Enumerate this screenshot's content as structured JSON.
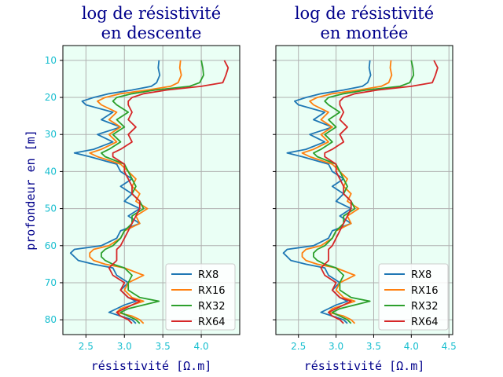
{
  "figure": {
    "ylabel": "profondeur en [m]",
    "bg_color": "#eafff5",
    "title_color": "#00008b",
    "tick_color": "#17becf"
  },
  "chart_data": [
    {
      "type": "line",
      "title": "log de résistivité\nen descente",
      "xlabel": "résistivité [Ω.m]",
      "ylabel": "profondeur en [m]",
      "xlim": [
        2.2,
        4.5
      ],
      "ylim": [
        84,
        6
      ],
      "xticks": [
        "2.5",
        "3.0",
        "3.5",
        "4.0"
      ],
      "yticks": [
        "10",
        "20",
        "30",
        "40",
        "50",
        "60",
        "70",
        "80"
      ],
      "grid": true,
      "legend_position": "lower right",
      "series": [
        {
          "name": "RX8",
          "color": "#1f77b4",
          "depth": [
            10,
            12,
            14,
            16,
            17,
            18,
            19,
            20,
            21,
            22,
            24,
            26,
            28,
            30,
            32,
            34,
            35,
            36,
            38,
            40,
            42,
            44,
            46,
            48,
            50,
            52,
            54,
            56,
            58,
            60,
            61,
            62,
            63,
            64,
            65,
            66,
            68,
            70,
            72,
            74,
            75,
            76,
            77,
            78,
            79,
            80,
            81
          ],
          "values": [
            3.45,
            3.44,
            3.46,
            3.42,
            3.35,
            3.1,
            2.8,
            2.6,
            2.45,
            2.5,
            2.85,
            2.7,
            2.95,
            2.65,
            2.85,
            2.6,
            2.35,
            2.55,
            2.9,
            2.95,
            3.1,
            2.95,
            3.1,
            3.0,
            3.2,
            3.05,
            3.2,
            2.95,
            2.9,
            2.7,
            2.35,
            2.3,
            2.35,
            2.4,
            2.6,
            2.85,
            2.9,
            3.05,
            2.95,
            3.05,
            3.15,
            3.0,
            2.9,
            2.8,
            2.95,
            3.1,
            3.15
          ]
        },
        {
          "name": "RX16",
          "color": "#ff7f0e",
          "depth": [
            10,
            12,
            14,
            16,
            17,
            18,
            19,
            20,
            21,
            22,
            24,
            26,
            28,
            30,
            32,
            34,
            35,
            36,
            38,
            40,
            42,
            44,
            46,
            48,
            50,
            52,
            54,
            56,
            58,
            60,
            61,
            62,
            63,
            64,
            65,
            66,
            68,
            70,
            72,
            74,
            75,
            76,
            77,
            78,
            79,
            80,
            81
          ],
          "values": [
            3.73,
            3.72,
            3.74,
            3.7,
            3.6,
            3.3,
            2.95,
            2.75,
            2.65,
            2.7,
            2.9,
            2.8,
            2.95,
            2.8,
            2.9,
            2.7,
            2.55,
            2.65,
            2.95,
            3.05,
            3.15,
            3.1,
            3.2,
            3.15,
            3.3,
            3.15,
            3.2,
            3.0,
            2.95,
            2.8,
            2.6,
            2.55,
            2.55,
            2.6,
            2.75,
            3.0,
            3.25,
            3.05,
            3.0,
            3.1,
            3.25,
            3.1,
            2.95,
            2.9,
            3.1,
            3.2,
            3.25
          ]
        },
        {
          "name": "RX32",
          "color": "#2ca02c",
          "depth": [
            10,
            12,
            14,
            16,
            17,
            18,
            19,
            20,
            21,
            22,
            24,
            26,
            28,
            30,
            32,
            34,
            35,
            36,
            38,
            40,
            42,
            44,
            46,
            48,
            50,
            52,
            54,
            56,
            58,
            60,
            61,
            62,
            63,
            64,
            65,
            66,
            68,
            70,
            72,
            74,
            75,
            76,
            77,
            78,
            79,
            80,
            81
          ],
          "values": [
            4.0,
            4.02,
            4.03,
            3.98,
            3.85,
            3.4,
            3.1,
            2.9,
            2.85,
            2.9,
            3.05,
            2.9,
            3.0,
            2.85,
            2.95,
            2.8,
            2.7,
            2.75,
            3.0,
            3.05,
            3.1,
            3.15,
            3.1,
            3.2,
            3.25,
            3.1,
            3.1,
            3.0,
            2.95,
            2.85,
            2.75,
            2.7,
            2.7,
            2.75,
            2.85,
            3.0,
            3.1,
            3.05,
            3.05,
            3.2,
            3.45,
            3.25,
            3.05,
            2.95,
            3.05,
            3.15,
            3.2
          ]
        },
        {
          "name": "RX64",
          "color": "#d62728",
          "depth": [
            10,
            12,
            14,
            16,
            17,
            18,
            19,
            20,
            21,
            22,
            24,
            26,
            28,
            30,
            32,
            34,
            35,
            36,
            38,
            40,
            42,
            44,
            46,
            48,
            50,
            52,
            54,
            56,
            58,
            60,
            61,
            62,
            63,
            64,
            65,
            66,
            68,
            70,
            72,
            74,
            75,
            76,
            77,
            78,
            79,
            80,
            81
          ],
          "values": [
            4.3,
            4.35,
            4.32,
            4.28,
            4.0,
            3.55,
            3.25,
            3.1,
            3.05,
            3.05,
            3.1,
            3.05,
            3.15,
            3.05,
            3.1,
            2.95,
            2.85,
            2.85,
            3.0,
            3.0,
            3.05,
            3.1,
            3.1,
            3.2,
            3.2,
            3.15,
            3.1,
            3.05,
            3.0,
            2.95,
            2.9,
            2.9,
            2.9,
            2.9,
            2.85,
            2.8,
            2.85,
            3.0,
            2.95,
            3.05,
            3.2,
            3.1,
            3.0,
            2.9,
            2.95,
            3.05,
            3.1
          ]
        }
      ]
    },
    {
      "type": "line",
      "title": "log de résistivité\nen montée",
      "xlabel": "résistivité [Ω.m]",
      "xlim": [
        2.2,
        4.55
      ],
      "ylim": [
        84,
        6
      ],
      "xticks": [
        "2.5",
        "3.0",
        "3.5",
        "4.0",
        "4.5"
      ],
      "grid": true,
      "legend_position": "lower right",
      "series": [
        {
          "name": "RX8",
          "color": "#1f77b4",
          "depth": [
            10,
            12,
            14,
            16,
            17,
            18,
            19,
            20,
            21,
            22,
            24,
            26,
            28,
            30,
            32,
            34,
            35,
            36,
            38,
            40,
            42,
            44,
            46,
            48,
            50,
            52,
            54,
            56,
            58,
            60,
            61,
            62,
            63,
            64,
            65,
            66,
            68,
            70,
            72,
            74,
            75,
            76,
            77,
            78,
            79,
            80,
            81
          ],
          "values": [
            3.45,
            3.44,
            3.46,
            3.42,
            3.35,
            3.1,
            2.8,
            2.6,
            2.45,
            2.5,
            2.85,
            2.7,
            2.95,
            2.65,
            2.85,
            2.6,
            2.35,
            2.55,
            2.9,
            2.95,
            3.1,
            2.95,
            3.1,
            3.0,
            3.2,
            3.05,
            3.2,
            2.95,
            2.9,
            2.7,
            2.35,
            2.3,
            2.35,
            2.4,
            2.6,
            2.85,
            2.9,
            3.05,
            2.95,
            3.05,
            3.15,
            3.0,
            2.9,
            2.8,
            2.95,
            3.1,
            3.15
          ]
        },
        {
          "name": "RX16",
          "color": "#ff7f0e",
          "depth": [
            10,
            12,
            14,
            16,
            17,
            18,
            19,
            20,
            21,
            22,
            24,
            26,
            28,
            30,
            32,
            34,
            35,
            36,
            38,
            40,
            42,
            44,
            46,
            48,
            50,
            52,
            54,
            56,
            58,
            60,
            61,
            62,
            63,
            64,
            65,
            66,
            68,
            70,
            72,
            74,
            75,
            76,
            77,
            78,
            79,
            80,
            81
          ],
          "values": [
            3.73,
            3.72,
            3.74,
            3.7,
            3.6,
            3.3,
            2.95,
            2.75,
            2.65,
            2.7,
            2.9,
            2.8,
            2.95,
            2.8,
            2.9,
            2.7,
            2.55,
            2.65,
            2.95,
            3.05,
            3.15,
            3.1,
            3.2,
            3.15,
            3.3,
            3.15,
            3.2,
            3.0,
            2.95,
            2.8,
            2.6,
            2.55,
            2.55,
            2.6,
            2.75,
            3.0,
            3.25,
            3.05,
            3.0,
            3.1,
            3.25,
            3.1,
            2.95,
            2.9,
            3.1,
            3.2,
            3.25
          ]
        },
        {
          "name": "RX32",
          "color": "#2ca02c",
          "depth": [
            10,
            12,
            14,
            16,
            17,
            18,
            19,
            20,
            21,
            22,
            24,
            26,
            28,
            30,
            32,
            34,
            35,
            36,
            38,
            40,
            42,
            44,
            46,
            48,
            50,
            52,
            54,
            56,
            58,
            60,
            61,
            62,
            63,
            64,
            65,
            66,
            68,
            70,
            72,
            74,
            75,
            76,
            77,
            78,
            79,
            80,
            81
          ],
          "values": [
            4.0,
            4.02,
            4.03,
            3.98,
            3.85,
            3.4,
            3.1,
            2.9,
            2.85,
            2.9,
            3.05,
            2.9,
            3.0,
            2.85,
            2.95,
            2.8,
            2.7,
            2.75,
            3.0,
            3.05,
            3.1,
            3.15,
            3.1,
            3.2,
            3.25,
            3.1,
            3.1,
            3.0,
            2.95,
            2.85,
            2.75,
            2.7,
            2.7,
            2.75,
            2.85,
            3.0,
            3.1,
            3.05,
            3.05,
            3.2,
            3.45,
            3.25,
            3.05,
            2.95,
            3.05,
            3.15,
            3.2
          ]
        },
        {
          "name": "RX64",
          "color": "#d62728",
          "depth": [
            10,
            12,
            14,
            16,
            17,
            18,
            19,
            20,
            21,
            22,
            24,
            26,
            28,
            30,
            32,
            34,
            35,
            36,
            38,
            40,
            42,
            44,
            46,
            48,
            50,
            52,
            54,
            56,
            58,
            60,
            61,
            62,
            63,
            64,
            65,
            66,
            68,
            70,
            72,
            74,
            75,
            76,
            77,
            78,
            79,
            80,
            81
          ],
          "values": [
            4.3,
            4.35,
            4.32,
            4.28,
            4.0,
            3.55,
            3.25,
            3.1,
            3.05,
            3.05,
            3.1,
            3.05,
            3.15,
            3.05,
            3.1,
            2.95,
            2.85,
            2.85,
            3.0,
            3.0,
            3.05,
            3.1,
            3.1,
            3.2,
            3.2,
            3.15,
            3.1,
            3.05,
            3.0,
            2.95,
            2.9,
            2.9,
            2.9,
            2.9,
            2.85,
            2.8,
            2.85,
            3.0,
            2.95,
            3.05,
            3.2,
            3.1,
            3.0,
            2.9,
            2.95,
            3.05,
            3.1
          ]
        }
      ]
    }
  ]
}
